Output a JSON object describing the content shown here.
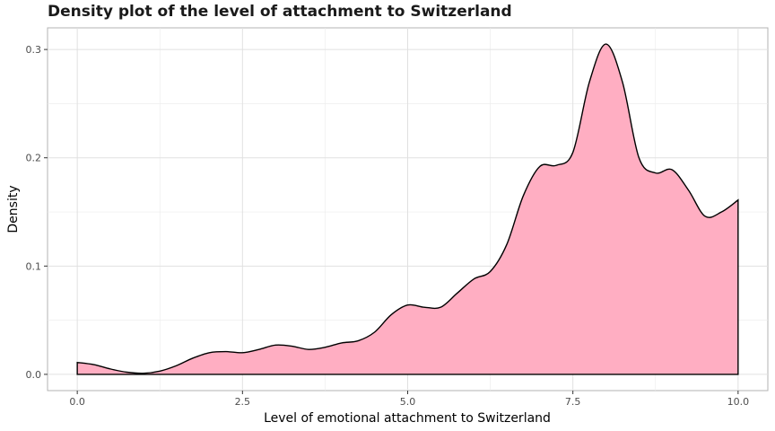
{
  "chart_data": {
    "type": "area",
    "title": "Density plot of the level of attachment to Switzerland",
    "xlabel": "Level of emotional attachment to Switzerland",
    "ylabel": "Density",
    "xlim": [
      -0.45,
      10.45
    ],
    "ylim": [
      -0.015,
      0.32
    ],
    "x_ticks": [
      0.0,
      2.5,
      5.0,
      7.5,
      10.0
    ],
    "x_tick_labels": [
      "0.0",
      "2.5",
      "5.0",
      "7.5",
      "10.0"
    ],
    "y_ticks": [
      0.0,
      0.1,
      0.2,
      0.3
    ],
    "y_tick_labels": [
      "0.0",
      "0.1",
      "0.2",
      "0.3"
    ],
    "grid": true,
    "fill_color": "#ffaec2",
    "line_color": "#000000",
    "series": [
      {
        "x": [
          0.0,
          0.25,
          0.5,
          0.75,
          1.0,
          1.25,
          1.5,
          1.75,
          2.0,
          2.25,
          2.5,
          2.75,
          3.0,
          3.25,
          3.5,
          3.75,
          4.0,
          4.25,
          4.5,
          4.75,
          5.0,
          5.25,
          5.5,
          5.75,
          6.0,
          6.25,
          6.5,
          6.75,
          7.0,
          7.25,
          7.5,
          7.75,
          8.0,
          8.25,
          8.5,
          8.75,
          9.0,
          9.25,
          9.5,
          9.75,
          10.0
        ],
        "y": [
          0.011,
          0.009,
          0.005,
          0.002,
          0.001,
          0.003,
          0.008,
          0.015,
          0.02,
          0.021,
          0.02,
          0.023,
          0.027,
          0.026,
          0.023,
          0.025,
          0.029,
          0.031,
          0.039,
          0.055,
          0.064,
          0.062,
          0.062,
          0.075,
          0.088,
          0.095,
          0.12,
          0.165,
          0.192,
          0.193,
          0.205,
          0.27,
          0.305,
          0.27,
          0.2,
          0.186,
          0.189,
          0.17,
          0.146,
          0.15,
          0.161
        ]
      }
    ]
  }
}
